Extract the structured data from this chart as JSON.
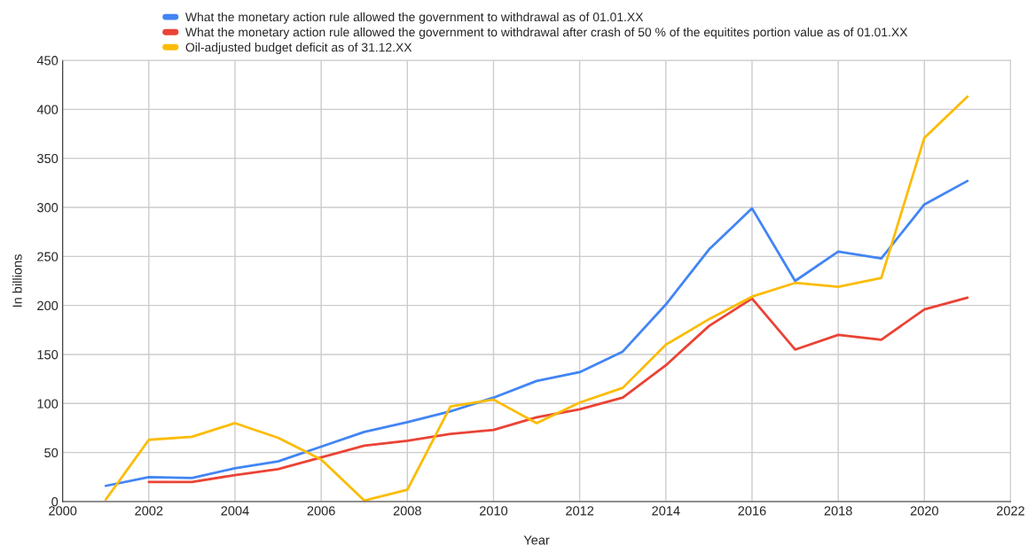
{
  "chart_data": {
    "type": "line",
    "xlabel": "Year",
    "ylabel": "In billions",
    "x": [
      2001,
      2002,
      2003,
      2004,
      2005,
      2006,
      2007,
      2008,
      2009,
      2010,
      2011,
      2012,
      2013,
      2014,
      2015,
      2016,
      2017,
      2018,
      2019,
      2020,
      2021
    ],
    "series": [
      {
        "name": "What the monetary action rule allowed the government to withdrawal as of 01.01.XX",
        "color": "#4285f4",
        "values": [
          16,
          25,
          24,
          34,
          41,
          56,
          71,
          81,
          92,
          106,
          123,
          132,
          153,
          201,
          257,
          299,
          225,
          255,
          248,
          303,
          327
        ]
      },
      {
        "name": "What the monetary action rule allowed the government to withdrawal after crash of 50 % of the equitites portion value as of 01.01.XX",
        "color": "#ea4335",
        "values": [
          null,
          20,
          20,
          27,
          33,
          45,
          57,
          62,
          69,
          73,
          86,
          94,
          106,
          139,
          179,
          207,
          155,
          170,
          165,
          196,
          208
        ]
      },
      {
        "name": "Oil-adjusted budget deficit as of 31.12.XX",
        "color": "#fbbc04",
        "values": [
          2,
          63,
          66,
          80,
          65,
          43,
          1,
          12,
          97,
          104,
          80,
          101,
          116,
          160,
          186,
          209,
          223,
          219,
          228,
          371,
          413
        ]
      }
    ],
    "xlim": [
      2000,
      2022
    ],
    "xticks": [
      2000,
      2002,
      2004,
      2006,
      2008,
      2010,
      2012,
      2014,
      2016,
      2018,
      2020,
      2022
    ],
    "ylim": [
      0,
      450
    ],
    "yticks": [
      0,
      50,
      100,
      150,
      200,
      250,
      300,
      350,
      400,
      450
    ],
    "grid": true,
    "legend": "top",
    "marker": "none",
    "line_style": "solid"
  }
}
